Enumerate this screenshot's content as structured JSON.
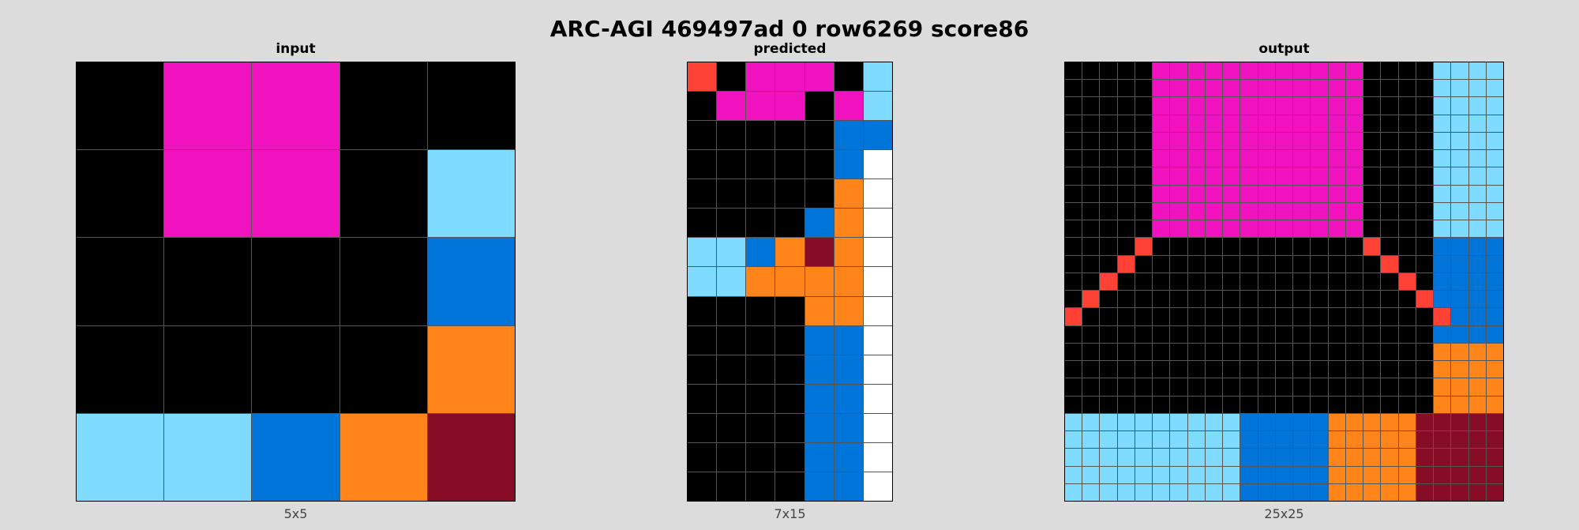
{
  "title": "ARC-AGI 469497ad 0 row6269 score86",
  "palette": {
    "0": "#000000",
    "1": "#0074d9",
    "2": "#ff4136",
    "3": "#2ecc40",
    "4": "#ffdc00",
    "5": "#aaaaaa",
    "6": "#f012be",
    "7": "#ff851b",
    "8": "#7fdbff",
    "9": "#870c25",
    "W": "#ffffff"
  },
  "panels": [
    {
      "title": "input",
      "dims_label": "5x5",
      "rows": [
        "06600",
        "06608",
        "00001",
        "00007",
        "88179"
      ]
    },
    {
      "title": "predicted",
      "dims_label": "7x15",
      "rows": [
        "2066608",
        "0666068",
        "0000011",
        "000001W",
        "000007W",
        "000017W",
        "881797W",
        "887777W",
        "000077W",
        "000011W",
        "000011W",
        "000011W",
        "000011W",
        "000011W",
        "000011W"
      ]
    },
    {
      "title": "output",
      "dims_label": "25x25",
      "rows": [
        "0000066666666666600008888",
        "0000066666666666600008888",
        "0000066666666666600008888",
        "0000066666666666600008888",
        "0000066666666666600008888",
        "0000066666666666600008888",
        "0000066666666666600008888",
        "0000066666666666600008888",
        "0000066666666666600008888",
        "0000066666666666600008888",
        "0000200000000000020001111",
        "0002000000000000002001111",
        "0020000000000000000201111",
        "0200000000000000000021111",
        "2000000000000000000002111",
        "0000000000000000000001111",
        "0000000000000000000007777",
        "0000000000000000000007777",
        "0000000000000000000007777",
        "0000000000000000000007777",
        "8888888888111117777799999",
        "8888888888111117777799999",
        "8888888888111117777799999",
        "8888888888111117777799999",
        "8888888888111117777799999"
      ]
    }
  ]
}
